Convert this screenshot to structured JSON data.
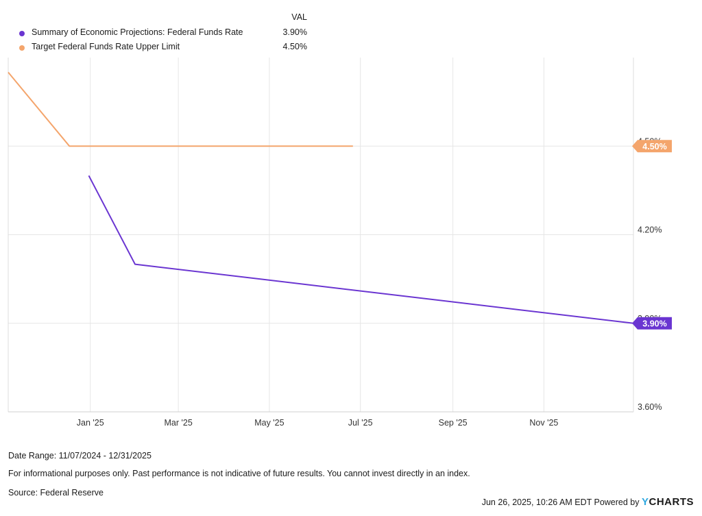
{
  "legend": {
    "header": "VAL",
    "items": [
      {
        "name": "Summary of Economic Projections: Federal Funds Rate",
        "value": "3.90%",
        "color": "#6a35d1"
      },
      {
        "name": "Target Federal Funds Rate Upper Limit",
        "value": "4.50%",
        "color": "#f4a56c"
      }
    ]
  },
  "chart_data": {
    "type": "line",
    "x_ticks": [
      "Jan '25",
      "Mar '25",
      "May '25",
      "Jul '25",
      "Sep '25",
      "Nov '25"
    ],
    "x_tick_dates": [
      "2025-01-01",
      "2025-03-01",
      "2025-05-01",
      "2025-07-01",
      "2025-09-01",
      "2025-11-01"
    ],
    "xlim": [
      "2024-11-07",
      "2025-12-31"
    ],
    "y_ticks": [
      4.5,
      4.2,
      3.9,
      3.6
    ],
    "y_tick_labels": [
      "4.50%",
      "4.20%",
      "3.90%",
      "3.60%"
    ],
    "ylim": [
      3.6,
      4.8
    ],
    "series": [
      {
        "name": "Target Federal Funds Rate Upper Limit",
        "color": "#f4a56c",
        "points": [
          [
            "2024-11-07",
            4.75
          ],
          [
            "2024-12-18",
            4.5
          ],
          [
            "2025-06-26",
            4.5
          ]
        ],
        "end_label": "4.50%",
        "end_value": 4.5
      },
      {
        "name": "Summary of Economic Projections: Federal Funds Rate",
        "color": "#6a35d1",
        "points": [
          [
            "2024-12-31",
            4.4
          ],
          [
            "2025-01-31",
            4.1
          ],
          [
            "2025-12-31",
            3.9
          ]
        ],
        "end_label": "3.90%",
        "end_value": 3.9
      }
    ]
  },
  "footer": {
    "date_range": "Date Range: 11/07/2024 - 12/31/2025",
    "disclaimer": "For informational purposes only. Past performance is not indicative of future results. You cannot invest directly in an index.",
    "source": "Source: Federal Reserve",
    "timestamp": "Jun 26, 2025, 10:26 AM EDT Powered by",
    "brand_y": "Y",
    "brand_rest": "CHARTS"
  }
}
